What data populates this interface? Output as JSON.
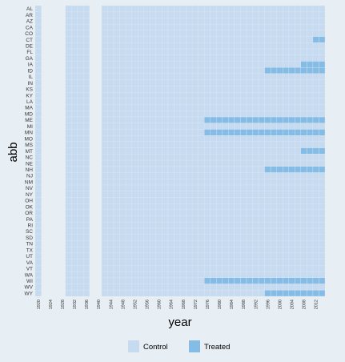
{
  "chart_data": {
    "type": "heatmap",
    "xlabel": "year",
    "ylabel": "abb",
    "states": [
      "AL",
      "AR",
      "AZ",
      "CA",
      "CO",
      "CT",
      "DE",
      "FL",
      "GA",
      "IA",
      "ID",
      "IL",
      "IN",
      "KS",
      "KY",
      "LA",
      "MA",
      "MD",
      "ME",
      "MI",
      "MN",
      "MO",
      "MS",
      "MT",
      "NC",
      "NE",
      "NH",
      "NJ",
      "NM",
      "NV",
      "NY",
      "OH",
      "OK",
      "OR",
      "PA",
      "RI",
      "SC",
      "SD",
      "TN",
      "TX",
      "UT",
      "VA",
      "VT",
      "WA",
      "WI",
      "WV",
      "WY"
    ],
    "years": [
      1920,
      1922,
      1924,
      1926,
      1928,
      1930,
      1932,
      1934,
      1936,
      1938,
      1940,
      1942,
      1944,
      1946,
      1948,
      1950,
      1952,
      1954,
      1956,
      1958,
      1960,
      1962,
      1964,
      1966,
      1968,
      1970,
      1972,
      1974,
      1976,
      1978,
      1980,
      1982,
      1984,
      1986,
      1988,
      1990,
      1992,
      1994,
      1996,
      1998,
      2000,
      2002,
      2004,
      2006,
      2008,
      2010,
      2012,
      2014
    ],
    "missing_years": [
      1922,
      1924,
      1926,
      1928,
      1938,
      1940
    ],
    "x_tick_labels": [
      "1920",
      "1924",
      "1928",
      "1932",
      "1936",
      "1940",
      "1944",
      "1948",
      "1952",
      "1956",
      "1960",
      "1964",
      "1968",
      "1972",
      "1976",
      "1980",
      "1984",
      "1988",
      "1992",
      "1996",
      "2000",
      "2004",
      "2008",
      "2012"
    ],
    "treatment_start": {
      "CT": 2012,
      "IA": 2008,
      "ID": 1996,
      "ME": 1976,
      "MN": 1976,
      "MT": 2008,
      "NH": 1996,
      "WI": 1976,
      "WY": 1996
    },
    "legend": [
      {
        "label": "Control",
        "color": "#c6daf0"
      },
      {
        "label": "Treated",
        "color": "#85bce6"
      }
    ],
    "colors": {
      "control": "#c6daf0",
      "treated": "#85bce6",
      "background": "#e8eff4",
      "cell_border": "#dde8f4"
    }
  }
}
